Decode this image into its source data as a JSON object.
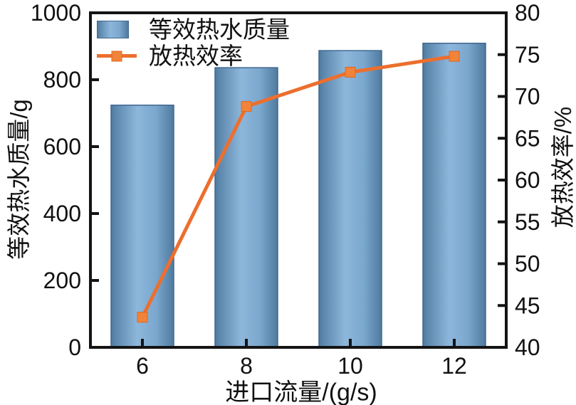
{
  "chart_data": {
    "type": "bar+line",
    "categories": [
      "6",
      "8",
      "10",
      "12"
    ],
    "series": [
      {
        "name": "等效热水质量",
        "type": "bar",
        "axis": "left",
        "values": [
          724,
          836,
          887,
          909
        ],
        "color_gradient": [
          "#4f7aa0",
          "#8db6db",
          "#507a9f"
        ],
        "border_color": "#41688f"
      },
      {
        "name": "放热效率",
        "type": "line",
        "axis": "right",
        "values": [
          43.6,
          68.8,
          72.9,
          74.8
        ],
        "color": "#ec6f2e",
        "marker": "square",
        "marker_color": "#f1843a"
      }
    ],
    "xlabel": "进口流量/(g/s)",
    "ylabel_left": "等效热水质量/g",
    "ylabel_right": "放热效率/%",
    "y_left": {
      "min": 0,
      "max": 1000,
      "ticks": [
        0,
        200,
        400,
        600,
        800,
        1000
      ]
    },
    "y_right": {
      "min": 40,
      "max": 80,
      "ticks": [
        40,
        45,
        50,
        55,
        60,
        65,
        70,
        75,
        80
      ]
    },
    "x_ticks": [
      "6",
      "8",
      "10",
      "12"
    ],
    "grid": false,
    "legend_position": "top-left",
    "frame_color": "#141414",
    "background": "#ffffff"
  }
}
